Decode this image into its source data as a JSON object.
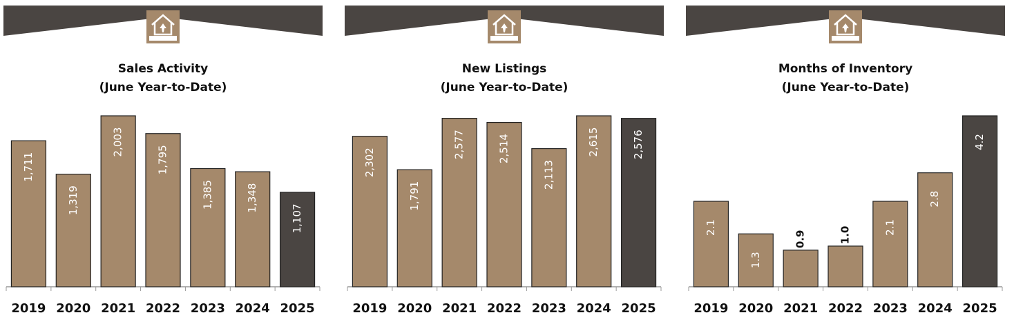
{
  "chart_data": [
    {
      "type": "bar",
      "title": "Sales Activity",
      "subtitle": "(June Year-to-Date)",
      "categories": [
        "2019",
        "2020",
        "2021",
        "2022",
        "2023",
        "2024",
        "2025"
      ],
      "values": [
        1711,
        1319,
        2003,
        1795,
        1385,
        1348,
        1107
      ],
      "value_labels": [
        "1,711",
        "1,319",
        "2,003",
        "1,795",
        "1,385",
        "1,348",
        "1,107"
      ],
      "colors": [
        "#a5896b",
        "#a5896b",
        "#a5896b",
        "#a5896b",
        "#a5896b",
        "#a5896b",
        "#4a4542"
      ]
    },
    {
      "type": "bar",
      "title": "New Listings",
      "subtitle": "(June Year-to-Date)",
      "categories": [
        "2019",
        "2020",
        "2021",
        "2022",
        "2023",
        "2024",
        "2025"
      ],
      "values": [
        2302,
        1791,
        2577,
        2514,
        2113,
        2615,
        2576
      ],
      "value_labels": [
        "2,302",
        "1,791",
        "2,577",
        "2,514",
        "2,113",
        "2,615",
        "2,576"
      ],
      "colors": [
        "#a5896b",
        "#a5896b",
        "#a5896b",
        "#a5896b",
        "#a5896b",
        "#a5896b",
        "#4a4542"
      ]
    },
    {
      "type": "bar",
      "title": "Months of Inventory",
      "subtitle": "(June Year-to-Date)",
      "categories": [
        "2019",
        "2020",
        "2021",
        "2022",
        "2023",
        "2024",
        "2025"
      ],
      "values": [
        2.1,
        1.3,
        0.9,
        1.0,
        2.1,
        2.8,
        4.2
      ],
      "value_labels": [
        "2.1",
        "1.3",
        "0.9",
        "1.0",
        "2.1",
        "2.8",
        "4.2"
      ],
      "colors": [
        "#a5896b",
        "#a5896b",
        "#a5896b",
        "#a5896b",
        "#a5896b",
        "#a5896b",
        "#4a4542"
      ]
    }
  ]
}
